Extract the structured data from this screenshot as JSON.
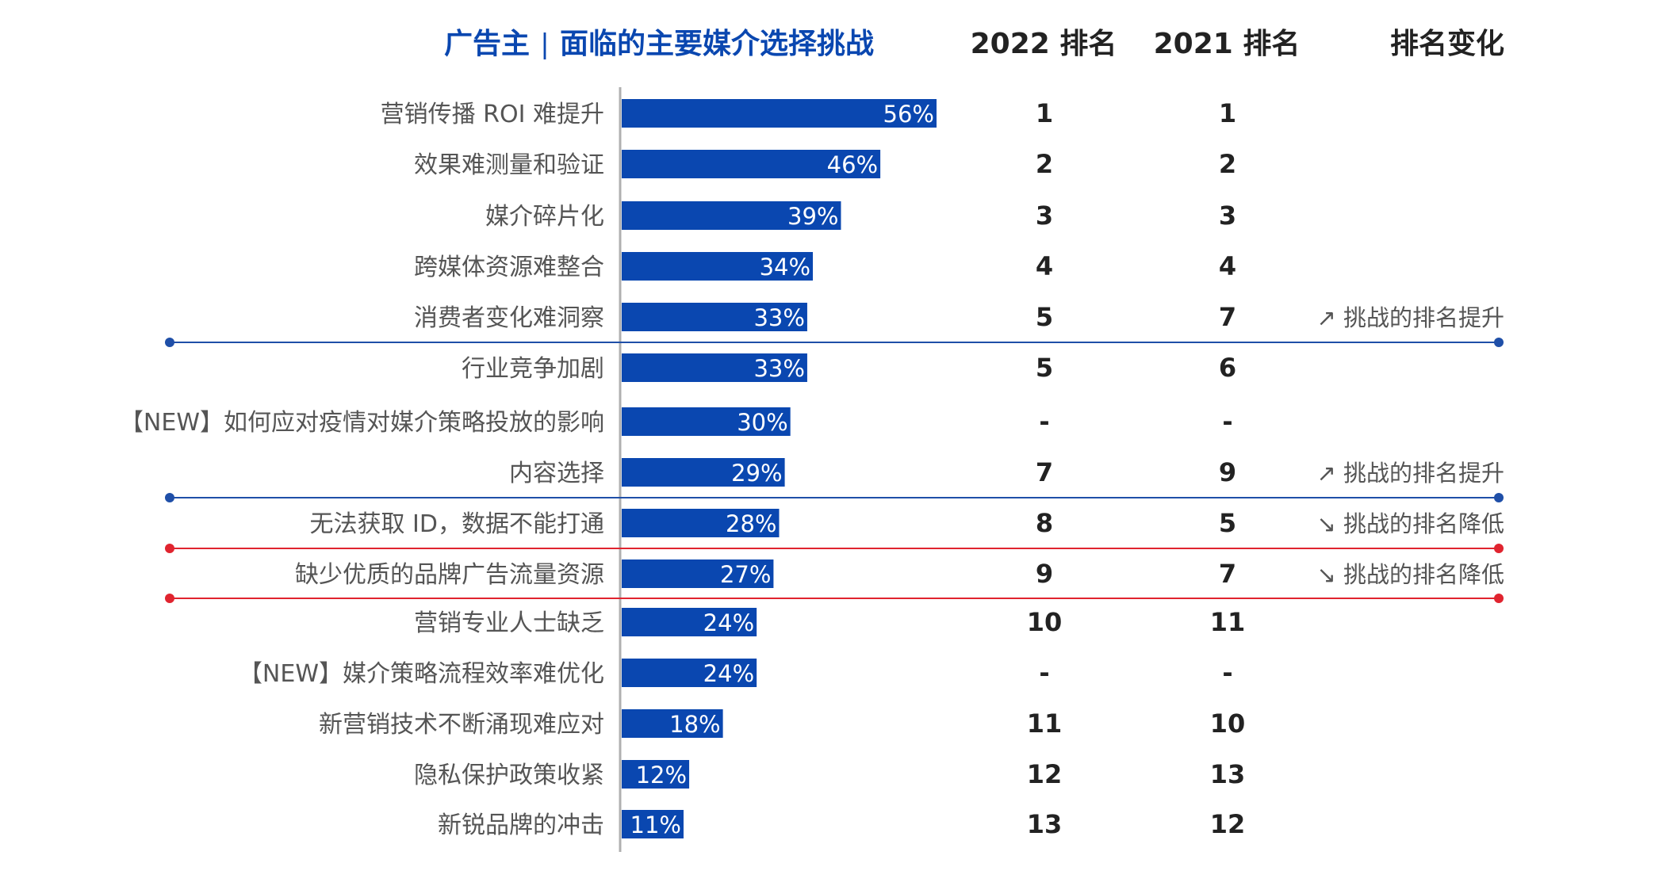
{
  "header": {
    "title_left": "广告主",
    "title_sep": "|",
    "title_right": "面临的主要媒介选择挑战",
    "col_2022": "2022 排名",
    "col_2021": "2021 排名",
    "col_change": "排名变化"
  },
  "colors": {
    "bar": "#0a47b0",
    "up_line": "#1f4fa8",
    "down_line": "#e0242f",
    "axis": "#b0b0b0"
  },
  "chart_data": {
    "type": "bar",
    "orientation": "horizontal",
    "categories": [
      "营销传播 ROI 难提升",
      "效果难测量和验证",
      "媒介碎片化",
      "跨媒体资源难整合",
      "消费者变化难洞察",
      "行业竞争加剧",
      "【NEW】如何应对疫情对媒介策略投放的影响",
      "内容选择",
      "无法获取 ID，数据不能打通",
      "缺少优质的品牌广告流量资源",
      "营销专业人士缺乏",
      "【NEW】媒介策略流程效率难优化",
      "新营销技术不断涌现难应对",
      "隐私保护政策收紧",
      "新锐品牌的冲击"
    ],
    "values": [
      56,
      46,
      39,
      34,
      33,
      33,
      30,
      29,
      28,
      27,
      24,
      24,
      18,
      12,
      11
    ],
    "value_labels": [
      "56%",
      "46%",
      "39%",
      "34%",
      "33%",
      "33%",
      "30%",
      "29%",
      "28%",
      "27%",
      "24%",
      "24%",
      "18%",
      "12%",
      "11%"
    ],
    "rank_2022": [
      "1",
      "2",
      "3",
      "4",
      "5",
      "5",
      "-",
      "7",
      "8",
      "9",
      "10",
      "-",
      "11",
      "12",
      "13"
    ],
    "rank_2021": [
      "1",
      "2",
      "3",
      "4",
      "7",
      "6",
      "-",
      "9",
      "5",
      "7",
      "11",
      "-",
      "10",
      "13",
      "12"
    ],
    "rank_change": [
      "",
      "",
      "",
      "",
      "↗ 挑战的排名提升",
      "",
      "",
      "↗ 挑战的排名提升",
      "↘ 挑战的排名降低",
      "↘ 挑战的排名降低",
      "",
      "",
      "",
      "",
      ""
    ],
    "highlight_lines": [
      {
        "after_row": 4,
        "type": "up"
      },
      {
        "after_row": 7,
        "type": "up"
      },
      {
        "after_row": 8,
        "type": "down"
      },
      {
        "after_row": 9,
        "type": "down"
      }
    ],
    "xlim": [
      0,
      100
    ],
    "grid": false,
    "legend": "none"
  }
}
